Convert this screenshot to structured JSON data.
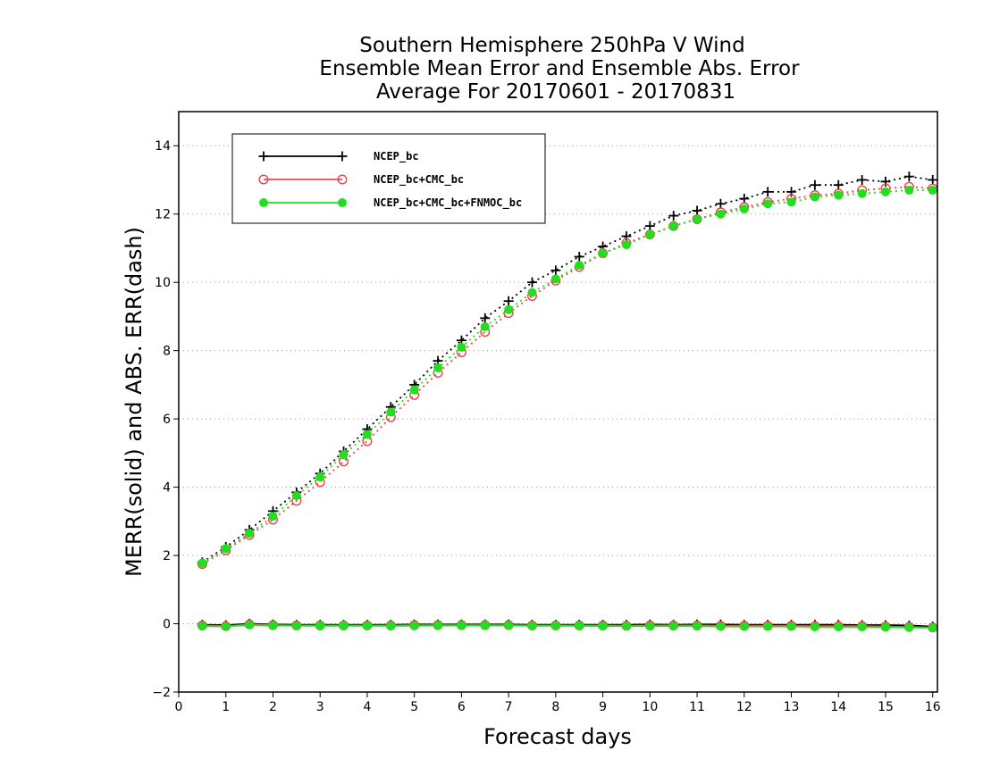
{
  "chart_data": {
    "type": "line",
    "title": [
      "Southern Hemisphere 250hPa V Wind",
      "Ensemble Mean Error and Ensemble Abs. Error",
      "Average For 20170601 - 20170831"
    ],
    "xlabel": "Forecast days",
    "ylabel": "MERR(solid) and ABS. ERR(dash)",
    "xlim": [
      0,
      16.1
    ],
    "ylim": [
      -2,
      15
    ],
    "xticks": [
      0,
      1,
      2,
      3,
      4,
      5,
      6,
      7,
      8,
      9,
      10,
      11,
      12,
      13,
      14,
      15,
      16
    ],
    "yticks": [
      -2,
      0,
      2,
      4,
      6,
      8,
      10,
      12,
      14
    ],
    "grid": "horizontal-dotted",
    "legend_position": "top-left",
    "x": [
      0.5,
      1.0,
      1.5,
      2.0,
      2.5,
      3.0,
      3.5,
      4.0,
      4.5,
      5.0,
      5.5,
      6.0,
      6.5,
      7.0,
      7.5,
      8.0,
      8.5,
      9.0,
      9.5,
      10.0,
      10.5,
      11.0,
      11.5,
      12.0,
      12.5,
      13.0,
      13.5,
      14.0,
      14.5,
      15.0,
      15.5,
      16.0
    ],
    "series": [
      {
        "name": "NCEP_bc",
        "color": "#000000",
        "marker": "plus",
        "abs_err": [
          1.8,
          2.25,
          2.75,
          3.3,
          3.85,
          4.4,
          5.05,
          5.7,
          6.35,
          7.0,
          7.7,
          8.3,
          8.95,
          9.45,
          10.0,
          10.35,
          10.75,
          11.05,
          11.35,
          11.65,
          11.95,
          12.1,
          12.3,
          12.45,
          12.65,
          12.65,
          12.85,
          12.85,
          13.0,
          12.95,
          13.1,
          13.0
        ],
        "mean_err": [
          -0.03,
          -0.04,
          0.0,
          -0.02,
          -0.03,
          -0.03,
          -0.03,
          -0.03,
          -0.03,
          -0.02,
          -0.02,
          -0.02,
          -0.02,
          -0.02,
          -0.03,
          -0.03,
          -0.03,
          -0.03,
          -0.03,
          -0.02,
          -0.03,
          -0.02,
          -0.02,
          -0.03,
          -0.03,
          -0.03,
          -0.03,
          -0.03,
          -0.04,
          -0.04,
          -0.05,
          -0.08
        ]
      },
      {
        "name": "NCEP_bc+CMC_bc",
        "color": "#ee4444",
        "marker": "open-circle",
        "abs_err": [
          1.75,
          2.15,
          2.6,
          3.05,
          3.6,
          4.15,
          4.75,
          5.35,
          6.05,
          6.7,
          7.35,
          7.95,
          8.55,
          9.1,
          9.6,
          10.05,
          10.45,
          10.85,
          11.15,
          11.4,
          11.65,
          11.85,
          12.05,
          12.2,
          12.35,
          12.45,
          12.55,
          12.6,
          12.7,
          12.75,
          12.8,
          12.75
        ],
        "mean_err": [
          -0.05,
          -0.07,
          -0.02,
          -0.04,
          -0.05,
          -0.05,
          -0.05,
          -0.05,
          -0.05,
          -0.04,
          -0.04,
          -0.04,
          -0.04,
          -0.04,
          -0.05,
          -0.05,
          -0.05,
          -0.05,
          -0.06,
          -0.05,
          -0.05,
          -0.05,
          -0.06,
          -0.06,
          -0.06,
          -0.06,
          -0.07,
          -0.07,
          -0.07,
          -0.08,
          -0.09,
          -0.11
        ]
      },
      {
        "name": "NCEP_bc+CMC_bc+FNMOC_bc",
        "color": "#22dd22",
        "marker": "filled-circle",
        "abs_err": [
          1.78,
          2.2,
          2.65,
          3.15,
          3.75,
          4.3,
          4.95,
          5.55,
          6.2,
          6.85,
          7.5,
          8.1,
          8.7,
          9.2,
          9.7,
          10.1,
          10.5,
          10.85,
          11.1,
          11.4,
          11.65,
          11.85,
          12.0,
          12.15,
          12.3,
          12.35,
          12.5,
          12.55,
          12.6,
          12.65,
          12.7,
          12.7
        ],
        "mean_err": [
          -0.07,
          -0.08,
          -0.03,
          -0.05,
          -0.06,
          -0.06,
          -0.06,
          -0.06,
          -0.06,
          -0.06,
          -0.05,
          -0.05,
          -0.05,
          -0.05,
          -0.06,
          -0.06,
          -0.06,
          -0.07,
          -0.07,
          -0.07,
          -0.07,
          -0.07,
          -0.08,
          -0.08,
          -0.08,
          -0.08,
          -0.09,
          -0.09,
          -0.09,
          -0.1,
          -0.11,
          -0.12
        ]
      }
    ]
  }
}
